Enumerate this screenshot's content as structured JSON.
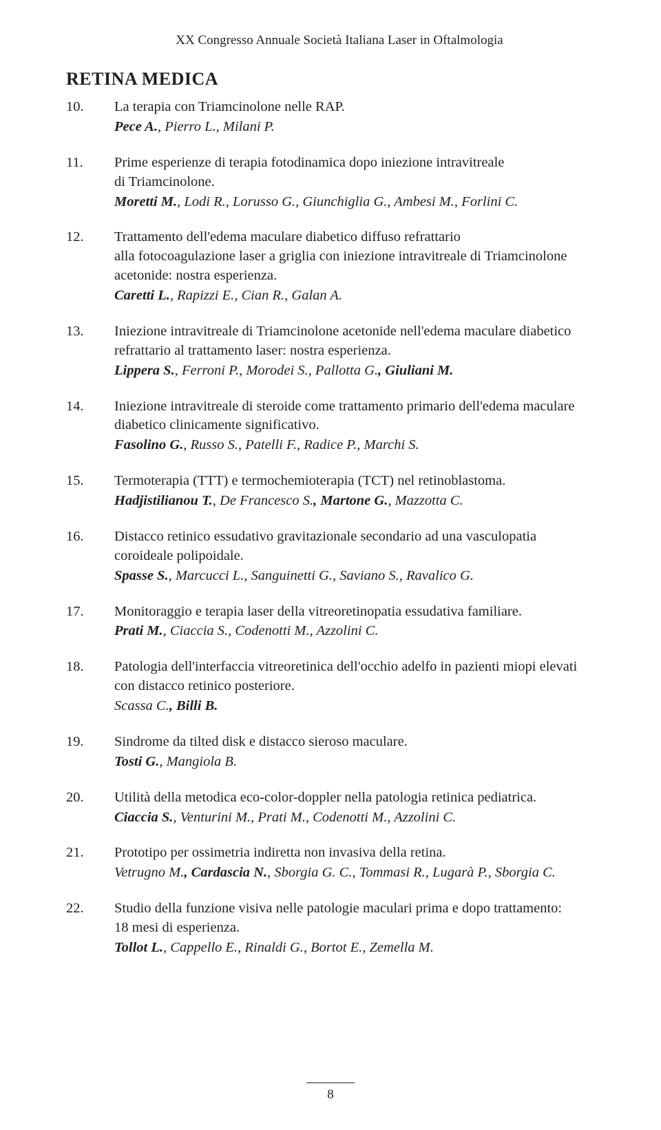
{
  "colors": {
    "text": "#231f20",
    "background": "#ffffff"
  },
  "typography": {
    "body_family": "Times New Roman",
    "body_size_pt": 15,
    "title_size_pt": 19,
    "line_height": 1.36
  },
  "running_header": "XX Congresso Annuale Società Italiana Laser in Oftalmologia",
  "section_title": "RETINA MEDICA",
  "page_number": "8",
  "entries": [
    {
      "num": "10.",
      "title_lines": [
        "La terapia con Triamcinolone nelle RAP."
      ],
      "author_segments": [
        {
          "text": "Pece A.",
          "bold": true
        },
        {
          "text": ", Pierro L., Milani P.",
          "bold": false
        }
      ]
    },
    {
      "num": "11.",
      "title_lines": [
        "Prime esperienze di terapia fotodinamica dopo iniezione intravitreale",
        "di Triamcinolone."
      ],
      "author_segments": [
        {
          "text": "Moretti M.",
          "bold": true
        },
        {
          "text": ", Lodi R., Lorusso G., Giunchiglia G., Ambesi M., Forlini C.",
          "bold": false
        }
      ]
    },
    {
      "num": "12.",
      "title_lines": [
        "Trattamento dell'edema maculare diabetico diffuso refrattario",
        "alla fotocoagulazione laser a griglia con iniezione intravitreale di Triamcinolone",
        "acetonide: nostra esperienza."
      ],
      "author_segments": [
        {
          "text": "Caretti L.",
          "bold": true
        },
        {
          "text": ", Rapizzi E., Cian R., Galan A.",
          "bold": false
        }
      ]
    },
    {
      "num": "13.",
      "title_lines": [
        "Iniezione intravitreale di Triamcinolone acetonide nell'edema maculare diabetico",
        "refrattario al trattamento laser: nostra esperienza."
      ],
      "author_segments": [
        {
          "text": "Lippera S.",
          "bold": true
        },
        {
          "text": ", Ferroni P., Morodei S., Pallotta G.",
          "bold": false
        },
        {
          "text": ", Giuliani M.",
          "bold": true
        }
      ]
    },
    {
      "num": "14.",
      "title_lines": [
        "Iniezione intravitreale di steroide come trattamento primario dell'edema maculare",
        "diabetico clinicamente significativo."
      ],
      "author_segments": [
        {
          "text": "Fasolino G.",
          "bold": true
        },
        {
          "text": ", Russo S., Patelli F., Radice P., Marchi S.",
          "bold": false
        }
      ]
    },
    {
      "num": "15.",
      "title_lines": [
        "Termoterapia (TTT) e termochemioterapia (TCT) nel retinoblastoma."
      ],
      "author_segments": [
        {
          "text": "Hadjistilianou T.",
          "bold": true
        },
        {
          "text": ", De Francesco S.",
          "bold": false
        },
        {
          "text": ", Martone G.",
          "bold": true
        },
        {
          "text": ", Mazzotta C.",
          "bold": false
        }
      ]
    },
    {
      "num": "16.",
      "title_lines": [
        "Distacco retinico essudativo gravitazionale secondario ad una vasculopatia",
        "coroideale polipoidale."
      ],
      "author_segments": [
        {
          "text": "Spasse S.",
          "bold": true
        },
        {
          "text": ", Marcucci L., Sanguinetti G., Saviano S., Ravalico G.",
          "bold": false
        }
      ]
    },
    {
      "num": "17.",
      "title_lines": [
        "Monitoraggio e terapia laser della vitreoretinopatia essudativa familiare."
      ],
      "author_segments": [
        {
          "text": "Prati M.",
          "bold": true
        },
        {
          "text": ", Ciaccia S., Codenotti M., Azzolini C.",
          "bold": false
        }
      ]
    },
    {
      "num": "18.",
      "title_lines": [
        "Patologia dell'interfaccia vitreoretinica dell'occhio adelfo in pazienti miopi elevati",
        "con distacco retinico posteriore."
      ],
      "author_segments": [
        {
          "text": "Scassa C.",
          "bold": false
        },
        {
          "text": ", Billi B.",
          "bold": true
        }
      ]
    },
    {
      "num": "19.",
      "title_lines": [
        "Sindrome da tilted disk e distacco sieroso maculare."
      ],
      "author_segments": [
        {
          "text": "Tosti G.",
          "bold": true
        },
        {
          "text": ", Mangiola B.",
          "bold": false
        }
      ]
    },
    {
      "num": "20.",
      "title_lines": [
        "Utilità della metodica eco-color-doppler nella patologia retinica pediatrica."
      ],
      "author_segments": [
        {
          "text": "Ciaccia S.",
          "bold": true
        },
        {
          "text": ", Venturini M., Prati M., Codenotti M., Azzolini C.",
          "bold": false
        }
      ]
    },
    {
      "num": "21.",
      "title_lines": [
        "Prototipo per ossimetria indiretta non invasiva della retina."
      ],
      "author_segments": [
        {
          "text": "Vetrugno M.",
          "bold": false
        },
        {
          "text": ", Cardascia N.",
          "bold": true
        },
        {
          "text": ", Sborgia G. C., Tommasi R., Lugarà P., Sborgia C.",
          "bold": false
        }
      ]
    },
    {
      "num": "22.",
      "title_lines": [
        "Studio della funzione visiva nelle patologie maculari prima e dopo trattamento:",
        "18 mesi di esperienza."
      ],
      "author_segments": [
        {
          "text": "Tollot L.",
          "bold": true
        },
        {
          "text": ", Cappello E., Rinaldi G., Bortot E., Zemella M.",
          "bold": false
        }
      ]
    }
  ]
}
